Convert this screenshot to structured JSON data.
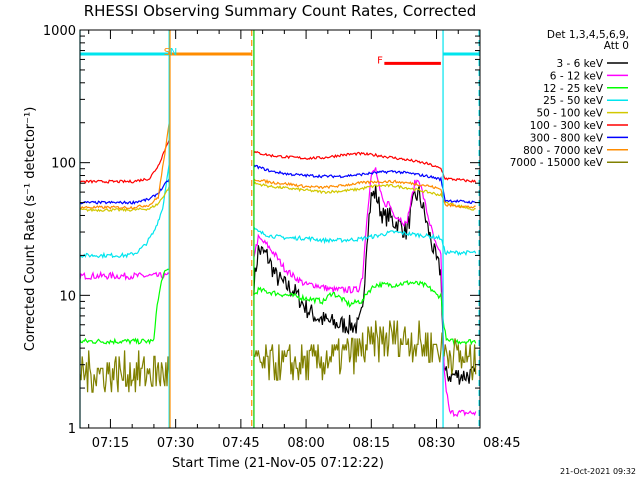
{
  "chart_data": {
    "type": "line",
    "title": "RHESSI Observing Summary Count Rates, Corrected",
    "xlabel": "Start Time (21-Nov-05 07:12:22)",
    "ylabel": "Corrected Count Rate (s⁻¹ detector⁻¹)",
    "yscale": "log",
    "xlim_minutes_after_0700": [
      8,
      100
    ],
    "ylim": [
      1,
      1000
    ],
    "x_ticks": [
      {
        "label": "07:15",
        "min": 15
      },
      {
        "label": "07:30",
        "min": 30
      },
      {
        "label": "07:45",
        "min": 45
      },
      {
        "label": "08:00",
        "min": 60
      },
      {
        "label": "08:15",
        "min": 75
      },
      {
        "label": "08:30",
        "min": 90
      },
      {
        "label": "08:45",
        "min": 105
      }
    ],
    "y_ticks": [
      {
        "label": "1",
        "value": 1
      },
      {
        "label": "10",
        "value": 10
      },
      {
        "label": "100",
        "value": 100
      },
      {
        "label": "1000",
        "value": 1000
      }
    ],
    "legend_header": [
      "Det 1,3,4,5,6,9,",
      "Att 0"
    ],
    "footer": "21-Oct-2021 09:32",
    "bars": [
      {
        "label": "S",
        "x0": 28.5,
        "x1": 47.5,
        "y": 660,
        "color": "#ff8c00"
      },
      {
        "label": "N",
        "x0": 8,
        "x1": 28.5,
        "y": 660,
        "color": "#00e5ee"
      },
      {
        "label": "N",
        "x0": 28.5,
        "x1": 28.5,
        "y": 660,
        "color": "#00e5ee"
      },
      {
        "label": "N",
        "x0": 91.5,
        "x1": 100,
        "y": 660,
        "color": "#00e5ee"
      },
      {
        "label": "F",
        "x0": 78,
        "x1": 91,
        "y": 560,
        "color": "#ff0000"
      }
    ],
    "bar_labels": [
      {
        "text": "S",
        "x": 28.0,
        "y": 650,
        "color": "#ff8c00"
      },
      {
        "text": "N",
        "x": 29.5,
        "y": 650,
        "color": "#00e5ee"
      },
      {
        "text": "F",
        "x": 77.0,
        "y": 560,
        "color": "#ff0000"
      }
    ],
    "vlines": [
      {
        "x": 8.0,
        "color": "#00e5ee",
        "dash": false
      },
      {
        "x": 28.5,
        "color": "#00e5ee",
        "dash": false
      },
      {
        "x": 28.7,
        "color": "#ff8c00",
        "dash": false
      },
      {
        "x": 47.5,
        "color": "#ff8c00",
        "dash": true
      },
      {
        "x": 48.0,
        "color": "#00cc00",
        "dash": false
      },
      {
        "x": 91.5,
        "color": "#00e5ee",
        "dash": false
      },
      {
        "x": 99.8,
        "color": "#00e5ee",
        "dash": true
      }
    ],
    "gaps": [
      [
        28.5,
        48.0
      ]
    ],
    "noise_seed": 7,
    "series": [
      {
        "name": "3 - 6 keV",
        "color": "#000000",
        "x": [
          48,
          49,
          51,
          53,
          55,
          57,
          60,
          62,
          64,
          66,
          68,
          70,
          72,
          73,
          74,
          75,
          76,
          77,
          78,
          79,
          80,
          81,
          82,
          83,
          84,
          85,
          86,
          87,
          88,
          89,
          90,
          91,
          91.8,
          92,
          99
        ],
        "y": [
          12,
          22,
          20,
          14,
          12,
          11,
          8.0,
          7.0,
          6.5,
          6.2,
          6.0,
          6.0,
          5.8,
          7.5,
          28,
          55,
          60,
          45,
          38,
          40,
          36,
          35,
          33,
          30,
          40,
          55,
          58,
          44,
          32,
          24,
          18,
          15,
          2.5,
          2.5,
          2.5
        ],
        "noise": 0.15
      },
      {
        "name": "6 - 12 keV",
        "color": "#ff00ff",
        "x": [
          8,
          15,
          20,
          25,
          27,
          28.5,
          48,
          49,
          51,
          53,
          55,
          57,
          60,
          62,
          64,
          66,
          68,
          70,
          72,
          73,
          74,
          75,
          76,
          77,
          78,
          79,
          80,
          81,
          82,
          83,
          84,
          85,
          86,
          87,
          88,
          89,
          90,
          91,
          91.8,
          93,
          99
        ],
        "y": [
          14,
          14,
          14,
          14,
          14,
          14,
          20,
          27,
          24,
          20,
          16,
          14,
          12,
          12,
          11.5,
          11,
          11,
          11,
          11,
          14,
          40,
          80,
          90,
          60,
          48,
          50,
          42,
          39,
          37,
          34,
          48,
          70,
          75,
          55,
          40,
          30,
          23,
          20,
          2.5,
          1.3,
          1.3
        ],
        "noise": 0.05
      },
      {
        "name": "12 - 25 keV",
        "color": "#00ff00",
        "x": [
          8,
          18,
          19,
          21,
          22,
          23,
          24,
          25,
          25.5,
          27,
          28.5,
          48,
          49,
          52,
          56,
          60,
          64,
          66,
          68,
          70,
          72,
          73,
          74,
          76,
          80,
          84,
          87,
          89,
          90,
          91,
          91.8,
          92.5,
          99
        ],
        "y": [
          4.5,
          4.5,
          4.5,
          4.5,
          4.5,
          4.5,
          4.5,
          4.5,
          7.5,
          14,
          16,
          10,
          11,
          10.5,
          10,
          9.5,
          9.0,
          10.5,
          9.5,
          8.5,
          9.0,
          9.0,
          10.5,
          12,
          12,
          12.5,
          12,
          11,
          10,
          10,
          5.5,
          4.5,
          4.5
        ],
        "noise": 0.04
      },
      {
        "name": "25 - 50 keV",
        "color": "#00e5ee",
        "x": [
          8,
          12,
          16,
          19,
          21,
          23,
          25,
          27,
          28.5,
          48,
          49,
          52,
          56,
          60,
          64,
          68,
          72,
          76,
          80,
          84,
          88,
          91,
          91.5,
          92,
          99
        ],
        "y": [
          20,
          20,
          20,
          20,
          21,
          24,
          30,
          45,
          100,
          32,
          30,
          28,
          27,
          27,
          26,
          26,
          26.5,
          28,
          30,
          29,
          28,
          27,
          24,
          21,
          21
        ],
        "noise": 0.03
      },
      {
        "name": "50 - 100 keV",
        "color": "#d2c800",
        "x": [
          8,
          12,
          16,
          20,
          24,
          26,
          28.5,
          48,
          52,
          56,
          60,
          64,
          68,
          72,
          76,
          80,
          84,
          88,
          91,
          92,
          99
        ],
        "y": [
          44,
          44,
          44,
          44,
          45,
          49,
          65,
          70,
          66,
          64,
          62,
          60,
          61,
          63,
          67,
          67,
          64,
          60,
          57,
          50,
          44
        ],
        "noise": 0.02
      },
      {
        "name": "100 - 300 keV",
        "color": "#ff0000",
        "x": [
          8,
          12,
          16,
          20,
          24,
          26,
          28.5,
          48,
          52,
          56,
          60,
          64,
          68,
          72,
          76,
          80,
          84,
          88,
          91,
          92,
          99
        ],
        "y": [
          72,
          72,
          72,
          72,
          76,
          95,
          150,
          120,
          113,
          110,
          108,
          109,
          114,
          117,
          114,
          109,
          104,
          98,
          90,
          76,
          72
        ],
        "noise": 0.02
      },
      {
        "name": "300 - 800 keV",
        "color": "#0000ff",
        "x": [
          8,
          12,
          16,
          20,
          24,
          26,
          28.5,
          48,
          52,
          56,
          60,
          64,
          68,
          72,
          76,
          80,
          84,
          88,
          91,
          92,
          99
        ],
        "y": [
          50,
          50,
          50,
          50,
          53,
          59,
          75,
          95,
          86,
          82,
          80,
          79,
          79,
          81,
          84,
          86,
          83,
          79,
          75,
          52,
          50
        ],
        "noise": 0.02
      },
      {
        "name": "800 - 7000 keV",
        "color": "#ff8c00",
        "x": [
          8,
          12,
          16,
          20,
          24,
          26,
          28.5,
          48,
          52,
          56,
          60,
          64,
          68,
          72,
          76,
          80,
          84,
          88,
          91,
          92,
          99
        ],
        "y": [
          46,
          46,
          46,
          46,
          48,
          55,
          195,
          75,
          71,
          69,
          66,
          65,
          67,
          70,
          72,
          72,
          70,
          67,
          63,
          48,
          46
        ],
        "noise": 0.02
      },
      {
        "name": "7000 - 15000 keV",
        "color": "#808000",
        "x": [
          8,
          20,
          28.5,
          48,
          52,
          56,
          60,
          64,
          68,
          72,
          76,
          80,
          84,
          88,
          91,
          99
        ],
        "y": [
          2.6,
          2.6,
          2.6,
          3.0,
          3.0,
          3.0,
          3.0,
          3.2,
          3.5,
          3.8,
          4.4,
          4.8,
          4.6,
          4.2,
          4.0,
          3.0
        ],
        "noise": 0.3,
        "stepped": true
      }
    ]
  }
}
